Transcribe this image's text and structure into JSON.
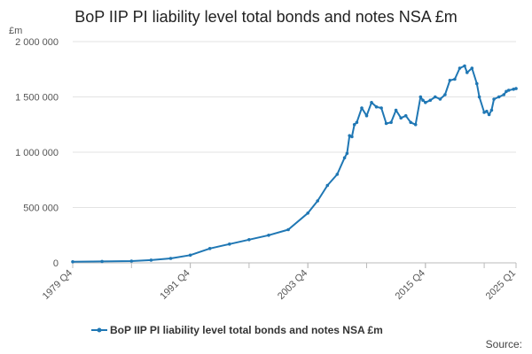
{
  "chart_data": {
    "type": "line",
    "title": "BoP IIP PI liability level total bonds and notes NSA £m",
    "unit_label": "£m",
    "source_label": "Source:",
    "xlabel": "",
    "ylabel": "",
    "ylim": [
      0,
      2000000
    ],
    "yticks": [
      0,
      500000,
      1000000,
      1500000,
      2000000
    ],
    "ytick_labels": [
      "0",
      "500 000",
      "1 000 000",
      "1 500 000",
      "2 000 000"
    ],
    "x_start": "1979 Q4",
    "x_end": "2025 Q1",
    "xtick_labels": [
      "1979 Q4",
      "1991 Q4",
      "2003 Q4",
      "2015 Q4",
      "2025 Q1"
    ],
    "grid": "horizontal",
    "legend_position": "bottom-center",
    "colors": {
      "series": "#1f77b4"
    },
    "series": [
      {
        "name": "BoP IIP PI liability level total bonds and notes NSA £m",
        "x": [
          "1979 Q4",
          "1982 Q4",
          "1985 Q4",
          "1987 Q4",
          "1989 Q4",
          "1991 Q4",
          "1993 Q4",
          "1995 Q4",
          "1997 Q4",
          "1999 Q4",
          "2001 Q4",
          "2003 Q4",
          "2004 Q4",
          "2005 Q4",
          "2006 Q4",
          "2007 Q3",
          "2007 Q4",
          "2008 Q1",
          "2008 Q2",
          "2008 Q3",
          "2008 Q4",
          "2009 Q2",
          "2009 Q4",
          "2010 Q2",
          "2010 Q4",
          "2011 Q2",
          "2011 Q4",
          "2012 Q2",
          "2012 Q4",
          "2013 Q2",
          "2013 Q4",
          "2014 Q2",
          "2014 Q4",
          "2015 Q2",
          "2015 Q3",
          "2015 Q4",
          "2016 Q2",
          "2016 Q4",
          "2017 Q2",
          "2017 Q4",
          "2018 Q2",
          "2018 Q4",
          "2019 Q2",
          "2019 Q4",
          "2020 Q1",
          "2020 Q3",
          "2021 Q1",
          "2021 Q2",
          "2021 Q4",
          "2022 Q1",
          "2022 Q2",
          "2022 Q3",
          "2022 Q4",
          "2023 Q2",
          "2023 Q4",
          "2024 Q1",
          "2024 Q2",
          "2024 Q4",
          "2025 Q1"
        ],
        "values": [
          10000,
          13000,
          16000,
          25000,
          40000,
          70000,
          130000,
          170000,
          210000,
          250000,
          300000,
          450000,
          560000,
          700000,
          800000,
          950000,
          990000,
          1150000,
          1140000,
          1250000,
          1270000,
          1400000,
          1330000,
          1450000,
          1410000,
          1400000,
          1260000,
          1270000,
          1380000,
          1310000,
          1330000,
          1270000,
          1250000,
          1500000,
          1470000,
          1450000,
          1470000,
          1500000,
          1480000,
          1520000,
          1650000,
          1660000,
          1760000,
          1780000,
          1720000,
          1760000,
          1620000,
          1500000,
          1360000,
          1370000,
          1340000,
          1380000,
          1480000,
          1500000,
          1520000,
          1550000,
          1560000,
          1570000,
          1575000
        ]
      }
    ]
  }
}
